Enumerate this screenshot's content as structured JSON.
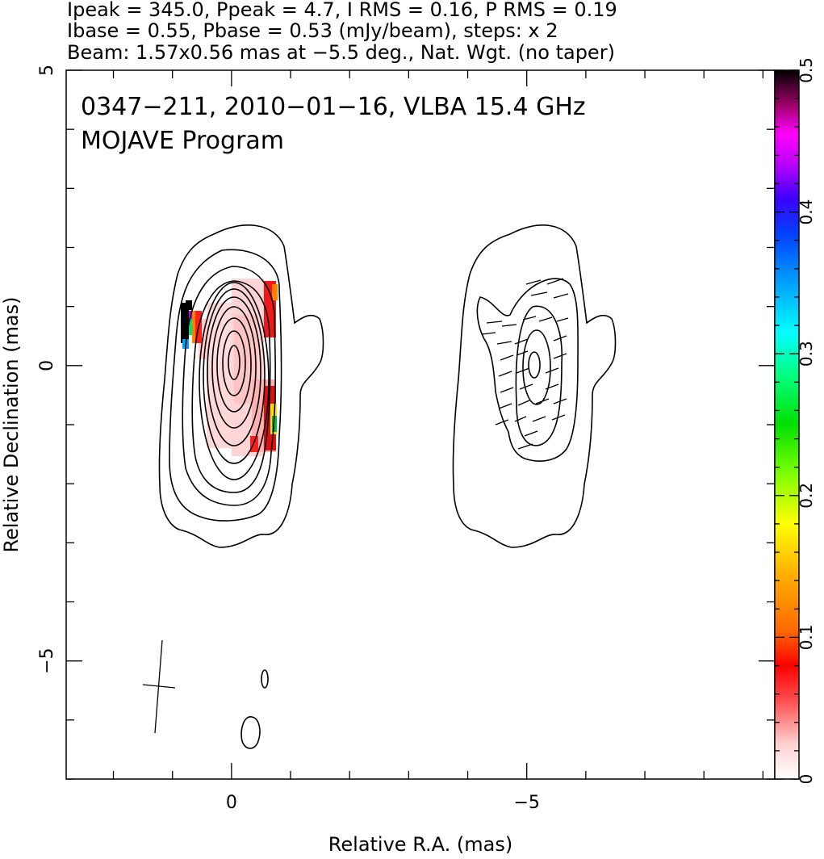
{
  "header": {
    "line1": "Ipeak = 345.0, Ppeak = 4.7, I RMS = 0.16, P RMS = 0.19",
    "line2": "Ibase = 0.55, Pbase = 0.53 (mJy/beam), steps: x 2",
    "line3": "Beam: 1.57x0.56 mas at −5.5 deg., Nat. Wgt. (no taper)"
  },
  "plot": {
    "title_line1": "0347−211, 2010−01−16, VLBA 15.4 GHz",
    "title_line2": "MOJAVE Program"
  },
  "chart_data": {
    "type": "heatmap",
    "description_of_panels": [
      "total intensity contours with fractional polarization colour map",
      "polarized intensity contours with EVPA sticks"
    ],
    "xlabel": "Relative R.A. (mas)",
    "ylabel": "Relative Declination (mas)",
    "xlim": [
      2.8,
      -9.2
    ],
    "ylim": [
      -7,
      5
    ],
    "x_ticks": [
      {
        "value": 0,
        "label": "0"
      },
      {
        "value": -5,
        "label": "−5"
      }
    ],
    "y_ticks": [
      {
        "value": 5,
        "label": "5"
      },
      {
        "value": 0,
        "label": "0"
      },
      {
        "value": -5,
        "label": "−5"
      }
    ],
    "colorbar": {
      "range": [
        0,
        0.5
      ],
      "ticks": [
        {
          "value": 0,
          "label": "0"
        },
        {
          "value": 0.1,
          "label": "0.1"
        },
        {
          "value": 0.2,
          "label": "0.2"
        },
        {
          "value": 0.3,
          "label": "0.3"
        },
        {
          "value": 0.4,
          "label": "0.4"
        },
        {
          "value": 0.5,
          "label": "0.5"
        }
      ]
    },
    "stats": {
      "Ipeak_mJy_per_beam": 345.0,
      "Ppeak_mJy_per_beam": 4.7,
      "I_RMS": 0.16,
      "P_RMS": 0.19,
      "Ibase": 0.55,
      "Pbase": 0.53,
      "contour_step_factor": 2
    },
    "beam": {
      "major_mas": 1.57,
      "minor_mas": 0.56,
      "pa_deg": -5.5
    },
    "grid": false
  },
  "colors": {
    "frame": "#000000",
    "contours": "#000000",
    "background": "#ffffff"
  }
}
